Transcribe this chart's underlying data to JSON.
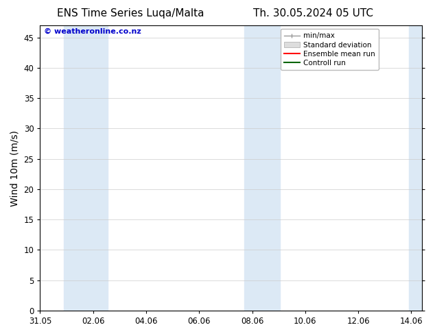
{
  "title_left": "ENS Time Series Luqa/Malta",
  "title_right": "Th. 30.05.2024 05 UTC",
  "ylabel": "Wind 10m (m/s)",
  "xlabel_ticks": [
    "31.05",
    "02.06",
    "04.06",
    "06.06",
    "08.06",
    "10.06",
    "12.06",
    "14.06"
  ],
  "xlim": [
    0,
    14.4
  ],
  "ylim": [
    0,
    47
  ],
  "yticks": [
    0,
    5,
    10,
    15,
    20,
    25,
    30,
    35,
    40,
    45
  ],
  "shaded_regions": [
    {
      "x_start": 0.9,
      "x_end": 2.55,
      "color": "#dce9f5"
    },
    {
      "x_start": 7.7,
      "x_end": 9.05,
      "color": "#dce9f5"
    },
    {
      "x_start": 13.9,
      "x_end": 14.4,
      "color": "#dce9f5"
    }
  ],
  "legend_items": [
    {
      "label": "min/max",
      "color": "#aaaaaa",
      "style": "line_with_caps"
    },
    {
      "label": "Standard deviation",
      "color": "#dddddd",
      "style": "filled_box"
    },
    {
      "label": "Ensemble mean run",
      "color": "#ff0000",
      "style": "line"
    },
    {
      "label": "Controll run",
      "color": "#006400",
      "style": "line"
    }
  ],
  "watermark": "© weatheronline.co.nz",
  "watermark_color": "#0000cc",
  "background_color": "#ffffff",
  "plot_bg_color": "#ffffff",
  "grid_color": "#cccccc",
  "title_fontsize": 11,
  "tick_fontsize": 8.5,
  "ylabel_fontsize": 10
}
